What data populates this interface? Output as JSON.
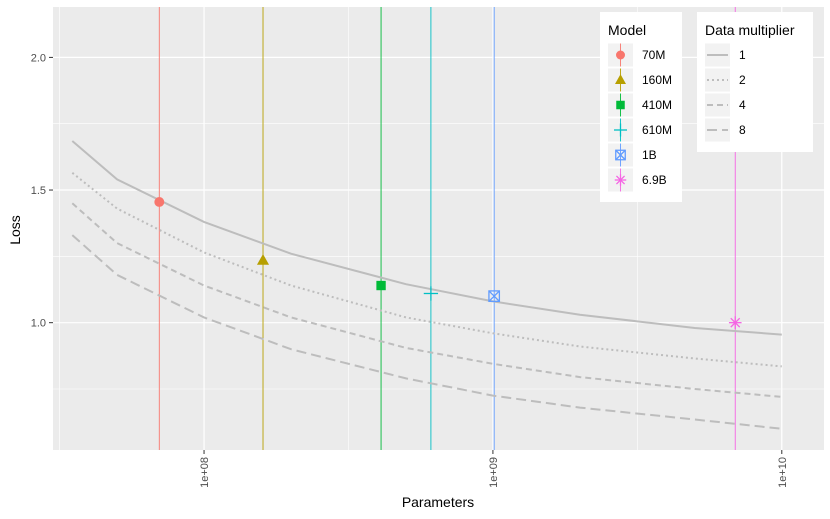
{
  "chart_data": {
    "type": "scatter",
    "xlabel": "Parameters",
    "ylabel": "Loss",
    "x_scale": "log10",
    "xlim": [
      30000000,
      14000000000
    ],
    "ylim": [
      0.52,
      2.19
    ],
    "x_ticks": [
      {
        "value": 100000000,
        "label": "1e+08"
      },
      {
        "value": 1000000000,
        "label": "1e+09"
      },
      {
        "value": 10000000000,
        "label": "1e+10"
      }
    ],
    "y_ticks": [
      {
        "value": 1.0,
        "label": "1.0"
      },
      {
        "value": 1.5,
        "label": "1.5"
      },
      {
        "value": 2.0,
        "label": "2.0"
      }
    ],
    "grid": true,
    "legend_model_title": "Model",
    "legend_multiplier_title": "Data multiplier",
    "models": [
      {
        "name": "70M",
        "params": 70000000,
        "loss": 1.455,
        "color": "#F8766D",
        "shape": "circle"
      },
      {
        "name": "160M",
        "params": 160000000,
        "loss": 1.235,
        "color": "#B79F00",
        "shape": "triangle"
      },
      {
        "name": "410M",
        "params": 410000000,
        "loss": 1.14,
        "color": "#00BA38",
        "shape": "square"
      },
      {
        "name": "610M",
        "params": 610000000,
        "loss": 1.11,
        "color": "#00BFC4",
        "shape": "plus"
      },
      {
        "name": "1B",
        "params": 1010000000,
        "loss": 1.1,
        "color": "#619CFF",
        "shape": "boxx"
      },
      {
        "name": "6.9B",
        "params": 6900000000,
        "loss": 1.0,
        "color": "#F564E3",
        "shape": "asterisk"
      }
    ],
    "curves": [
      {
        "name": "1",
        "dash": "solid",
        "x": [
          35000000,
          50000000,
          100000000,
          200000000,
          500000000,
          1000000000,
          2000000000,
          5000000000,
          10000000000
        ],
        "y": [
          1.685,
          1.54,
          1.38,
          1.26,
          1.145,
          1.08,
          1.03,
          0.98,
          0.955
        ]
      },
      {
        "name": "2",
        "dash": "dotted",
        "x": [
          35000000,
          50000000,
          100000000,
          200000000,
          500000000,
          1000000000,
          2000000000,
          5000000000,
          10000000000
        ],
        "y": [
          1.565,
          1.43,
          1.265,
          1.14,
          1.02,
          0.96,
          0.91,
          0.865,
          0.835
        ]
      },
      {
        "name": "4",
        "dash": "dashed",
        "x": [
          35000000,
          50000000,
          100000000,
          200000000,
          500000000,
          1000000000,
          2000000000,
          5000000000,
          10000000000
        ],
        "y": [
          1.45,
          1.3,
          1.14,
          1.02,
          0.905,
          0.845,
          0.795,
          0.75,
          0.72
        ]
      },
      {
        "name": "8",
        "dash": "longdash",
        "x": [
          35000000,
          50000000,
          100000000,
          200000000,
          500000000,
          1000000000,
          2000000000,
          5000000000,
          10000000000
        ],
        "y": [
          1.33,
          1.18,
          1.02,
          0.9,
          0.79,
          0.725,
          0.68,
          0.635,
          0.6
        ]
      }
    ],
    "curve_color": "#BDBDBD"
  }
}
